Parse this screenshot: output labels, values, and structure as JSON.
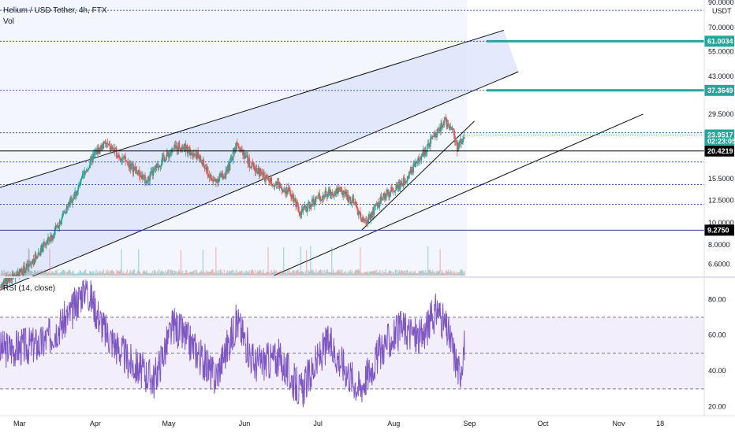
{
  "header": {
    "symbol_line": "Helium / USD Tether, 4h, FTX",
    "vol_label": "Vol",
    "rsi_label": "RSI (14, close)",
    "currency": "USDT"
  },
  "colors": {
    "up": "#26a69a",
    "down": "#ef5350",
    "rsi_line": "#7e57c2",
    "channel_fill": "#dfe6fb",
    "support_line": "#2a3a8f",
    "dotted": "#3a5ab8"
  },
  "chart_data": [
    {
      "type": "candlestick",
      "title": "Helium / USD Tether, 4h, FTX",
      "scale": "log",
      "ylim": [
        5.9,
        92
      ],
      "y_ticks": [
        "90.0000",
        "70.0000",
        "55.0000",
        "43.0000",
        "29.5000",
        "15.5000",
        "12.5000",
        "10.0000",
        "8.0000",
        "6.6000"
      ],
      "x_ticks": [
        {
          "label": "Mar",
          "date": "2021-03-01"
        },
        {
          "label": "Apr",
          "date": "2021-04-01"
        },
        {
          "label": "May",
          "date": "2021-05-01"
        },
        {
          "label": "Jun",
          "date": "2021-06-01"
        },
        {
          "label": "Jul",
          "date": "2021-07-01"
        },
        {
          "label": "Aug",
          "date": "2021-08-01"
        },
        {
          "label": "Sep",
          "date": "2021-09-01"
        },
        {
          "label": "Oct",
          "date": "2021-10-01"
        },
        {
          "label": "Nov",
          "date": "2021-11-01"
        },
        {
          "label": "18",
          "date": "2021-11-18"
        }
      ],
      "x_start": "2021-02-21",
      "x_end": "2021-12-06",
      "current_price": {
        "value": "23.9517",
        "countdown": "02:23:05"
      },
      "price_tags": [
        {
          "label": "61.0034",
          "value": 61.0034,
          "style": "target",
          "from": "2021-09-08"
        },
        {
          "label": "37.3649",
          "value": 37.3649,
          "style": "target",
          "from": "2021-09-08"
        },
        {
          "label": "20.4219",
          "value": 20.4219,
          "style": "support",
          "from": "2021-02-21"
        },
        {
          "label": "9.2750",
          "value": 9.275,
          "style": "support",
          "from": "2021-02-21"
        }
      ],
      "dotted_levels": [
        83,
        61.0,
        37.4,
        24.5,
        18.3,
        14.6,
        12.0
      ],
      "trendlines": [
        {
          "x1": "2021-02-21",
          "y1": 14.2,
          "x2": "2021-09-15",
          "y2": 68
        },
        {
          "x1": "2021-02-21",
          "y1": 5.1,
          "x2": "2021-09-21",
          "y2": 45
        },
        {
          "x1": "2021-07-19",
          "y1": 9.3,
          "x2": "2021-09-03",
          "y2": 27.5
        },
        {
          "x1": "2021-06-13",
          "y1": 5.9,
          "x2": "2021-11-11",
          "y2": 29.5
        }
      ],
      "price_path": [
        [
          "2021-02-21",
          5.3
        ],
        [
          "2021-03-05",
          6.5
        ],
        [
          "2021-03-15",
          8.9
        ],
        [
          "2021-03-25",
          14
        ],
        [
          "2021-04-01",
          20
        ],
        [
          "2021-04-05",
          22
        ],
        [
          "2021-04-12",
          19
        ],
        [
          "2021-04-22",
          15
        ],
        [
          "2021-04-29",
          19
        ],
        [
          "2021-05-05",
          21.5
        ],
        [
          "2021-05-12",
          20
        ],
        [
          "2021-05-19",
          15
        ],
        [
          "2021-05-25",
          16.5
        ],
        [
          "2021-05-29",
          22.5
        ],
        [
          "2021-06-03",
          18
        ],
        [
          "2021-06-10",
          15.5
        ],
        [
          "2021-06-20",
          13.5
        ],
        [
          "2021-06-24",
          11
        ],
        [
          "2021-07-01",
          12.8
        ],
        [
          "2021-07-10",
          14
        ],
        [
          "2021-07-16",
          12
        ],
        [
          "2021-07-20",
          9.8
        ],
        [
          "2021-07-28",
          13
        ],
        [
          "2021-08-05",
          15
        ],
        [
          "2021-08-12",
          19
        ],
        [
          "2021-08-18",
          24
        ],
        [
          "2021-08-22",
          27.5
        ],
        [
          "2021-08-25",
          25.5
        ],
        [
          "2021-08-27",
          21
        ],
        [
          "2021-08-30",
          23.95
        ]
      ]
    },
    {
      "type": "line",
      "title": "RSI (14, close)",
      "ylim": [
        15,
        92
      ],
      "y_ticks": [
        "80.00",
        "60.00",
        "40.00",
        "20.00"
      ],
      "band": [
        30,
        70
      ],
      "midline": 50,
      "rsi_path": [
        [
          "2021-02-21",
          52
        ],
        [
          "2021-03-10",
          55
        ],
        [
          "2021-03-22",
          72
        ],
        [
          "2021-03-28",
          88
        ],
        [
          "2021-04-05",
          62
        ],
        [
          "2021-04-15",
          45
        ],
        [
          "2021-04-25",
          35
        ],
        [
          "2021-05-03",
          66
        ],
        [
          "2021-05-12",
          52
        ],
        [
          "2021-05-20",
          36
        ],
        [
          "2021-05-29",
          68
        ],
        [
          "2021-06-05",
          44
        ],
        [
          "2021-06-15",
          47
        ],
        [
          "2021-06-24",
          28
        ],
        [
          "2021-07-05",
          56
        ],
        [
          "2021-07-18",
          30
        ],
        [
          "2021-07-28",
          54
        ],
        [
          "2021-08-05",
          64
        ],
        [
          "2021-08-12",
          58
        ],
        [
          "2021-08-19",
          75
        ],
        [
          "2021-08-24",
          58
        ],
        [
          "2021-08-28",
          38
        ],
        [
          "2021-08-30",
          56
        ]
      ]
    }
  ]
}
